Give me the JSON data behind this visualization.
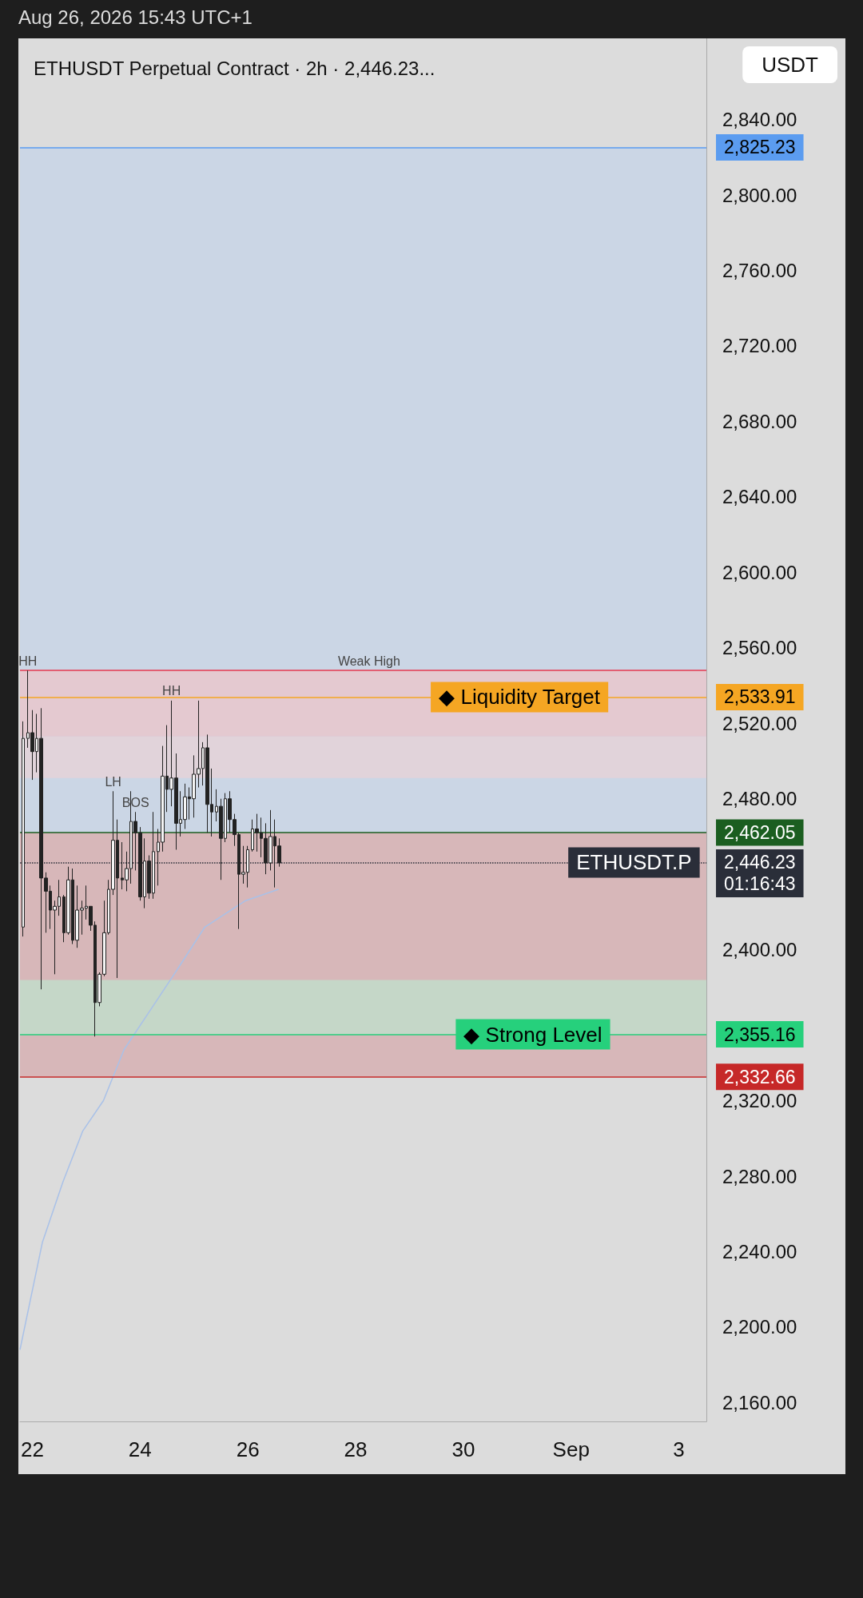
{
  "chart_data": {
    "type": "candlestick",
    "title": "ETHUSDT Perpetual Contract · 2h · 2,446.23...",
    "subtitle": "Aug 26, 2026 15:43 UTC+1",
    "ylabel": "USDT",
    "xlim": [
      "2026-08-21T18:30",
      "2026-09-03T12:15"
    ],
    "xticks": [
      {
        "value": "2026-08-22",
        "label": "22"
      },
      {
        "value": "2026-08-24",
        "label": "24"
      },
      {
        "value": "2026-08-26",
        "label": "26"
      },
      {
        "value": "2026-08-28",
        "label": "28"
      },
      {
        "value": "2026-08-30",
        "label": "30"
      },
      {
        "value": "2026-09-01",
        "label": "Sep"
      },
      {
        "value": "2026-09-03",
        "label": "3"
      }
    ],
    "ylim": [
      2150,
      2883
    ],
    "yticks": [
      {
        "value": 2160,
        "label": "2,160.00"
      },
      {
        "value": 2200,
        "label": "2,200.00"
      },
      {
        "value": 2240,
        "label": "2,240.00"
      },
      {
        "value": 2280,
        "label": "2,280.00"
      },
      {
        "value": 2320,
        "label": "2,320.00"
      },
      {
        "value": 2400,
        "label": "2,400.00"
      },
      {
        "value": 2480,
        "label": "2,480.00"
      },
      {
        "value": 2520,
        "label": "2,520.00"
      },
      {
        "value": 2560,
        "label": "2,560.00"
      },
      {
        "value": 2600,
        "label": "2,600.00"
      },
      {
        "value": 2640,
        "label": "2,640.00"
      },
      {
        "value": 2680,
        "label": "2,680.00"
      },
      {
        "value": 2720,
        "label": "2,720.00"
      },
      {
        "value": 2760,
        "label": "2,760.00"
      },
      {
        "value": 2800,
        "label": "2,800.00"
      },
      {
        "value": 2840,
        "label": "2,840.00"
      }
    ],
    "grid": false,
    "marker": "none",
    "series": [
      {
        "color": "#222222",
        "x": [
          "2026-08-21T20:00",
          "2026-08-21T22:00",
          "2026-08-22T00:00",
          "2026-08-22T02:00",
          "2026-08-22T04:00",
          "2026-08-22T06:00",
          "2026-08-22T08:00",
          "2026-08-22T10:00",
          "2026-08-22T12:00",
          "2026-08-22T14:00",
          "2026-08-22T16:00",
          "2026-08-22T18:00",
          "2026-08-22T20:00",
          "2026-08-22T22:00",
          "2026-08-23T00:00",
          "2026-08-23T02:00",
          "2026-08-23T04:00",
          "2026-08-23T06:00",
          "2026-08-23T08:00",
          "2026-08-23T10:00",
          "2026-08-23T12:00",
          "2026-08-23T14:00",
          "2026-08-23T16:00",
          "2026-08-23T18:00",
          "2026-08-23T20:00",
          "2026-08-23T22:00",
          "2026-08-24T00:00",
          "2026-08-24T02:00",
          "2026-08-24T04:00",
          "2026-08-24T06:00",
          "2026-08-24T08:00",
          "2026-08-24T10:00",
          "2026-08-24T12:00",
          "2026-08-24T14:00",
          "2026-08-24T16:00",
          "2026-08-24T18:00",
          "2026-08-24T20:00",
          "2026-08-24T22:00",
          "2026-08-25T00:00",
          "2026-08-25T02:00",
          "2026-08-25T04:00",
          "2026-08-25T06:00",
          "2026-08-25T08:00",
          "2026-08-25T10:00",
          "2026-08-25T12:00",
          "2026-08-25T14:00",
          "2026-08-25T16:00",
          "2026-08-25T18:00",
          "2026-08-25T20:00",
          "2026-08-25T22:00",
          "2026-08-26T00:00",
          "2026-08-26T02:00",
          "2026-08-26T04:00",
          "2026-08-26T06:00",
          "2026-08-26T08:00",
          "2026-08-26T10:00",
          "2026-08-26T12:00",
          "2026-08-26T14:00"
        ],
        "ohlc": [
          [
            2412,
            2521,
            2407,
            2512
          ],
          [
            2512,
            2548,
            2507,
            2515
          ],
          [
            2515,
            2527,
            2490,
            2505
          ],
          [
            2505,
            2525,
            2494,
            2512
          ],
          [
            2512,
            2528,
            2379,
            2438
          ],
          [
            2438,
            2441,
            2409,
            2431
          ],
          [
            2431,
            2434,
            2411,
            2421
          ],
          [
            2421,
            2426,
            2387,
            2423
          ],
          [
            2423,
            2437,
            2418,
            2428
          ],
          [
            2428,
            2429,
            2404,
            2409
          ],
          [
            2409,
            2444,
            2408,
            2437
          ],
          [
            2437,
            2443,
            2403,
            2405
          ],
          [
            2405,
            2434,
            2401,
            2421
          ],
          [
            2421,
            2426,
            2408,
            2422
          ],
          [
            2422,
            2434,
            2416,
            2423
          ],
          [
            2423,
            2423,
            2410,
            2413
          ],
          [
            2413,
            2415,
            2354,
            2372
          ],
          [
            2372,
            2388,
            2370,
            2387
          ],
          [
            2387,
            2426,
            2386,
            2409
          ],
          [
            2409,
            2437,
            2408,
            2432
          ],
          [
            2432,
            2484,
            2429,
            2458
          ],
          [
            2458,
            2469,
            2385,
            2438
          ],
          [
            2438,
            2457,
            2432,
            2437
          ],
          [
            2437,
            2452,
            2431,
            2443
          ],
          [
            2443,
            2484,
            2435,
            2468
          ],
          [
            2468,
            2473,
            2442,
            2462
          ],
          [
            2462,
            2465,
            2426,
            2428
          ],
          [
            2428,
            2459,
            2422,
            2447
          ],
          [
            2447,
            2450,
            2427,
            2430
          ],
          [
            2430,
            2473,
            2427,
            2452
          ],
          [
            2452,
            2464,
            2434,
            2457
          ],
          [
            2457,
            2508,
            2452,
            2492
          ],
          [
            2492,
            2519,
            2473,
            2485
          ],
          [
            2485,
            2532,
            2476,
            2491
          ],
          [
            2491,
            2504,
            2453,
            2467
          ],
          [
            2467,
            2484,
            2460,
            2469
          ],
          [
            2469,
            2488,
            2464,
            2481
          ],
          [
            2481,
            2486,
            2469,
            2480
          ],
          [
            2480,
            2503,
            2470,
            2493
          ],
          [
            2493,
            2532,
            2486,
            2496
          ],
          [
            2496,
            2510,
            2487,
            2507
          ],
          [
            2507,
            2514,
            2462,
            2477
          ],
          [
            2477,
            2496,
            2460,
            2473
          ],
          [
            2473,
            2485,
            2468,
            2476
          ],
          [
            2476,
            2480,
            2437,
            2459
          ],
          [
            2459,
            2483,
            2457,
            2480
          ],
          [
            2480,
            2484,
            2462,
            2469
          ],
          [
            2469,
            2472,
            2455,
            2461
          ],
          [
            2461,
            2462,
            2411,
            2440
          ],
          [
            2440,
            2455,
            2435,
            2441
          ],
          [
            2441,
            2455,
            2433,
            2453
          ],
          [
            2453,
            2469,
            2452,
            2464
          ],
          [
            2464,
            2472,
            2452,
            2462
          ],
          [
            2462,
            2470,
            2449,
            2459
          ],
          [
            2459,
            2467,
            2440,
            2446
          ],
          [
            2446,
            2474,
            2442,
            2460
          ],
          [
            2460,
            2469,
            2433,
            2455
          ],
          [
            2455,
            2459,
            2444,
            2446
          ]
        ]
      },
      {
        "type": "line",
        "color": "#a9c1e8",
        "x": [
          "2026-08-21T18:30",
          "2026-08-22T04:30",
          "2026-08-22T13:40",
          "2026-08-22T22:30",
          "2026-08-23T07:40",
          "2026-08-23T16:50",
          "2026-08-24T06:15",
          "2026-08-24T16:50",
          "2026-08-25T04:50",
          "2026-08-25T23:00",
          "2026-08-26T13:40"
        ],
        "values": [
          2188,
          2245,
          2277,
          2304,
          2320,
          2347,
          2371,
          2390,
          2412,
          2426,
          2432
        ]
      }
    ],
    "bands": [
      {
        "axis": "y",
        "from": 2462.05,
        "to": 2825.23,
        "color": "#c3d3e8"
      },
      {
        "axis": "y",
        "from": 2332.66,
        "to": 2462.05,
        "color": "#d4a6aa"
      },
      {
        "axis": "y",
        "from": 2513,
        "to": 2548,
        "color": "#eec3c8"
      },
      {
        "axis": "y",
        "from": 2491,
        "to": 2513,
        "color": "#e9d2d5"
      },
      {
        "axis": "y",
        "from": 2355.16,
        "to": 2384,
        "color": "#bde4cf"
      }
    ],
    "ref_lines": [
      {
        "axis": "y",
        "value": 2825.23,
        "label": "2,825.23",
        "color": "#5b9cf0",
        "line_style": "solid"
      },
      {
        "axis": "y",
        "value": 2548,
        "color": "#e53950",
        "line_style": "solid"
      },
      {
        "axis": "y",
        "value": 2533.91,
        "label": "2,533.91",
        "color": "#f5a623",
        "line_style": "solid"
      },
      {
        "axis": "y",
        "value": 2462.05,
        "label": "2,462.05",
        "color": "#1b5e20",
        "line_style": "solid"
      },
      {
        "axis": "y",
        "value": 2446.23,
        "label": "2,446.23\n01:16:43",
        "color": "#2a2e39",
        "line_style": "dotted"
      },
      {
        "axis": "y",
        "value": 2355.16,
        "label": "2,355.16",
        "color": "#26d07c",
        "line_style": "solid"
      },
      {
        "axis": "y",
        "value": 2332.66,
        "label": "2,332.66",
        "color": "#c62828",
        "line_style": "solid"
      }
    ],
    "annotations": [
      {
        "text": "HH",
        "x": "2026-08-21T22:00",
        "y": 2548
      },
      {
        "text": "HH",
        "x": "2026-08-24T14:00",
        "y": 2532
      },
      {
        "text": "LH",
        "x": "2026-08-23T12:00",
        "y": 2484
      },
      {
        "text": "BOS",
        "x": "2026-08-23T22:00",
        "y": 2473
      },
      {
        "text": "Weak High",
        "x": "2026-08-28T06:00",
        "y": 2548
      },
      {
        "text": "◆ Liquidity Target",
        "x": "2026-08-31T01:00",
        "y": 2533.91
      },
      {
        "text": "◆ Strong Level",
        "x": "2026-08-31T07:00",
        "y": 2355.16
      },
      {
        "text": "ETHUSDT.P",
        "x": "2026-09-02T04:00",
        "y": 2446.23
      }
    ]
  }
}
